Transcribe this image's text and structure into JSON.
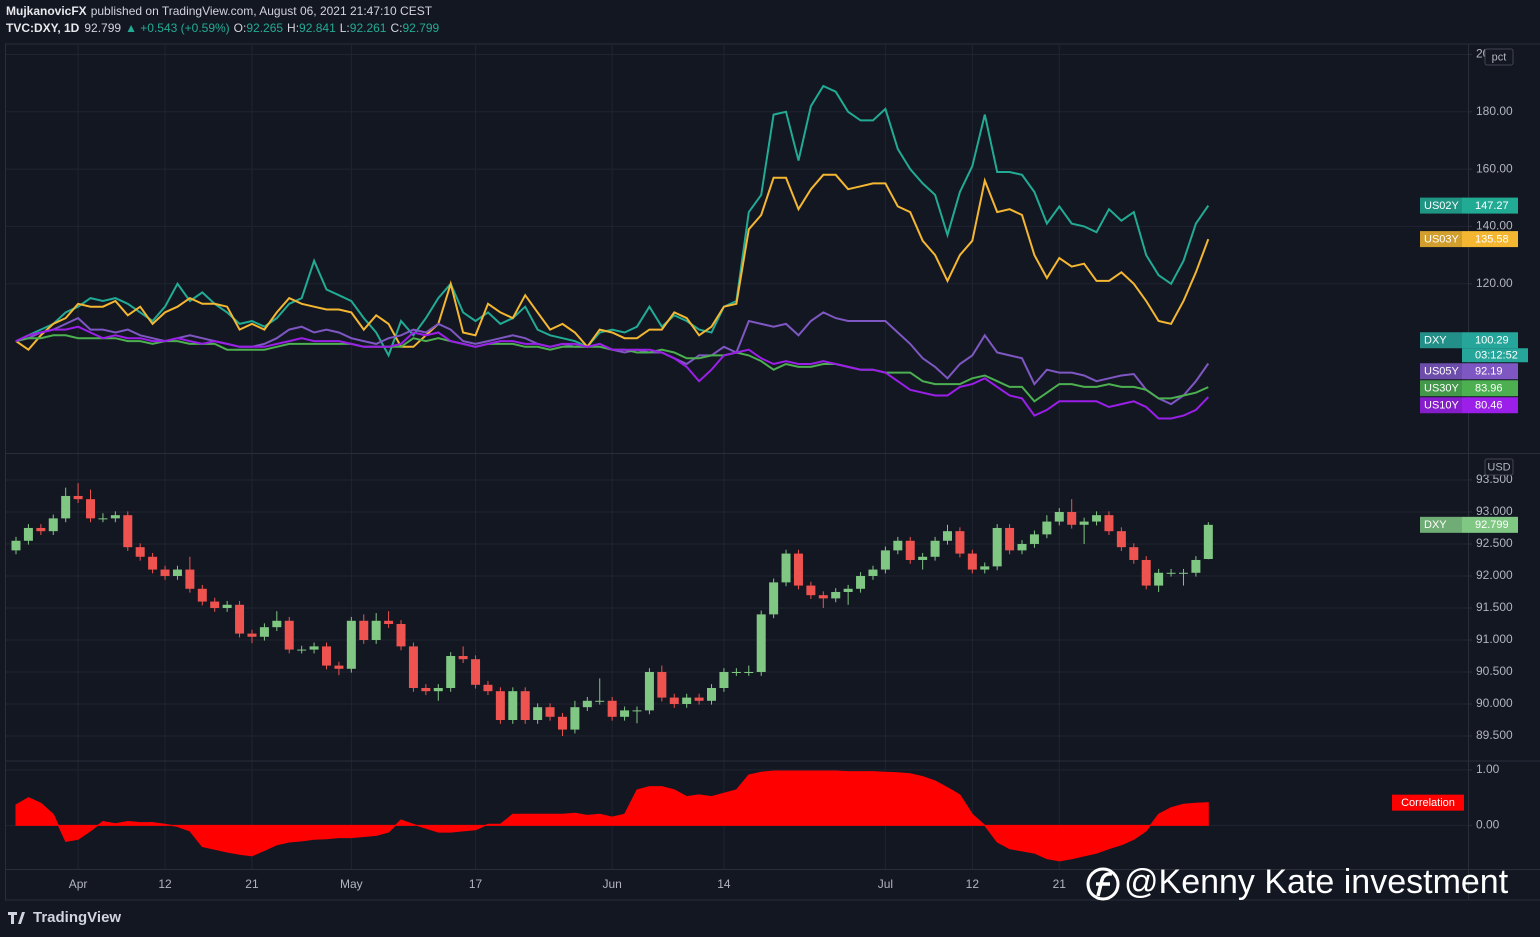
{
  "header": {
    "author": "MujkanovicFX",
    "published": "published on TradingView.com, August 06, 2021 21:47:10 CEST",
    "symbol": "TVC:DXY, 1D",
    "change": "▲ +0.543 (+0.59%)",
    "ohlc_labels": [
      "O:",
      "H:",
      "L:",
      "C:"
    ]
  },
  "chart_data": [
    {
      "type": "line",
      "unit": "pct",
      "ylim": [
        61.3,
        203.3
      ],
      "yticks": [
        {
          "value": 120,
          "label": "120.00"
        },
        {
          "value": 140,
          "label": "140.00"
        },
        {
          "value": 160,
          "label": "160.00"
        },
        {
          "value": 180,
          "label": "180.00"
        },
        {
          "value": 200,
          "label": "200.00"
        }
      ],
      "reference": {
        "name": "DXY",
        "value": 100.29,
        "countdown": "03:12:52",
        "color": "#26a69a"
      },
      "series": [
        {
          "name": "US02Y",
          "color": "#22ab94",
          "values": [
            100,
            102,
            104,
            106,
            110,
            112,
            115,
            114,
            115,
            113,
            110,
            107,
            112,
            120,
            114,
            117,
            113,
            110,
            106,
            107,
            105,
            108,
            113,
            115,
            128,
            118,
            116,
            114,
            108,
            103,
            95,
            107,
            102,
            108,
            115,
            120,
            110,
            107,
            110,
            106,
            108,
            112,
            104,
            102,
            101,
            100,
            98,
            103,
            104,
            103,
            105,
            112,
            105,
            109,
            107,
            104,
            103,
            112,
            114,
            145,
            151,
            179,
            180,
            163,
            182,
            189,
            187,
            180,
            177,
            177,
            181,
            167,
            160,
            155,
            151,
            137,
            152,
            161,
            179,
            159,
            159,
            158,
            152,
            141,
            147,
            141,
            140,
            138,
            146,
            142,
            145,
            130,
            123,
            120,
            128,
            141,
            147.27
          ]
        },
        {
          "name": "US03Y",
          "color": "#f5b731",
          "values": [
            100,
            97,
            102,
            106,
            108,
            113,
            112,
            112,
            114,
            109,
            112,
            106,
            110,
            112,
            115,
            113,
            113,
            112,
            104,
            106,
            104,
            110,
            115,
            113,
            112,
            111,
            111,
            110,
            104,
            109,
            106,
            98,
            98,
            102,
            106,
            120,
            103,
            102,
            113,
            110,
            108,
            116,
            110,
            104,
            106,
            103,
            98,
            104,
            103,
            101,
            101,
            104,
            104,
            110,
            108,
            102,
            105,
            112,
            113,
            139,
            144,
            157,
            157,
            146,
            153,
            158,
            158,
            153,
            154,
            155,
            155,
            147,
            145,
            135,
            130,
            121,
            130,
            135,
            156,
            145,
            146,
            144,
            130,
            122,
            129,
            126,
            127,
            121,
            121,
            124,
            120,
            114,
            107,
            106,
            114,
            124,
            135.58
          ]
        },
        {
          "name": "US05Y",
          "color": "#7e57c2",
          "values": [
            100,
            101,
            103,
            104,
            106,
            108,
            104,
            104,
            103,
            104,
            102,
            101,
            100,
            101,
            102,
            101,
            100,
            99,
            98,
            98,
            99,
            101,
            104,
            105,
            103,
            104,
            103,
            101,
            100,
            99,
            101,
            102,
            104,
            103,
            106,
            104,
            100,
            99,
            100,
            101,
            102,
            101,
            99,
            98,
            99,
            98,
            98,
            99,
            97,
            96,
            97,
            96,
            96,
            94,
            92,
            95,
            95,
            98,
            96,
            107,
            106,
            105,
            106,
            102,
            107,
            110,
            108,
            107,
            107,
            107,
            107,
            103,
            99,
            94,
            91,
            87,
            92,
            95,
            102,
            96,
            95,
            94,
            85,
            90,
            89,
            89,
            88,
            86,
            87,
            88,
            88.5,
            83,
            80,
            78,
            81,
            86,
            92.19
          ]
        },
        {
          "name": "US30Y",
          "color": "#4caf50",
          "values": [
            100,
            101,
            101,
            102,
            102,
            101,
            101,
            101,
            101,
            100,
            100,
            99,
            100,
            100,
            99,
            99,
            99,
            97,
            97,
            97,
            97,
            98,
            99,
            99,
            99,
            99,
            99,
            99,
            98,
            98,
            98,
            98,
            101,
            100,
            101,
            100,
            99,
            98,
            99,
            99,
            99,
            98,
            98,
            97,
            98,
            98,
            98,
            98,
            97,
            97,
            96,
            96,
            97,
            96,
            94,
            94,
            95,
            95,
            96,
            95,
            93,
            90,
            92,
            91,
            91,
            92,
            92,
            91,
            90,
            90,
            89,
            89,
            89,
            86,
            85,
            85,
            85,
            87,
            88,
            86,
            84,
            84,
            79,
            82,
            85,
            85,
            84,
            84,
            85,
            84,
            84,
            83,
            80,
            80,
            81,
            82,
            83.96
          ]
        },
        {
          "name": "US10Y",
          "color": "#9b1fe8",
          "values": [
            100,
            102,
            103,
            104,
            104,
            105,
            103,
            101,
            102,
            101,
            101,
            100,
            100,
            101,
            100,
            99,
            100,
            99,
            98,
            98,
            98,
            99,
            100,
            101,
            100,
            100,
            100,
            99,
            98,
            98,
            98,
            99,
            103,
            102,
            103,
            100,
            99,
            98,
            99,
            100,
            100,
            99,
            99,
            98,
            99,
            99,
            98,
            99,
            97,
            97,
            97,
            97,
            96,
            94,
            91,
            86,
            90,
            95,
            96,
            97,
            94,
            92,
            93,
            92,
            92,
            93,
            92,
            91,
            90,
            90,
            89,
            86,
            83,
            82,
            81,
            81,
            84,
            85,
            87,
            84,
            81,
            80,
            74,
            76,
            79,
            79,
            79,
            79,
            77,
            78,
            79,
            77,
            73,
            73,
            74,
            76,
            80.46
          ]
        }
      ]
    },
    {
      "type": "candlestick",
      "name": "DXY",
      "unit": "USD",
      "up_color": "#81c784",
      "down_color": "#ef5350",
      "badge_color": "#81c784",
      "ylim": [
        89.125,
        93.89
      ],
      "yticks": [
        {
          "value": 89.5,
          "label": "89.500"
        },
        {
          "value": 90,
          "label": "90.000"
        },
        {
          "value": 90.5,
          "label": "90.500"
        },
        {
          "value": 91,
          "label": "91.000"
        },
        {
          "value": 91.5,
          "label": "91.500"
        },
        {
          "value": 92,
          "label": "92.000"
        },
        {
          "value": 92.5,
          "label": "92.500"
        },
        {
          "value": 93,
          "label": "93.000"
        },
        {
          "value": 93.5,
          "label": "93.500"
        }
      ],
      "open": [
        92.4,
        92.55,
        92.75,
        92.7,
        92.9,
        93.25,
        93.2,
        92.9,
        92.9,
        92.95,
        92.45,
        92.3,
        92.1,
        92.0,
        92.1,
        91.8,
        91.6,
        91.5,
        91.55,
        91.1,
        91.05,
        91.2,
        91.3,
        90.85,
        90.85,
        90.9,
        90.6,
        90.55,
        91.3,
        91.0,
        91.3,
        91.25,
        90.9,
        90.25,
        90.2,
        90.25,
        90.75,
        90.7,
        90.3,
        90.2,
        89.75,
        90.2,
        89.75,
        89.95,
        89.8,
        89.6,
        89.95,
        90.05,
        90.05,
        89.8,
        89.9,
        89.9,
        90.5,
        90.1,
        90.0,
        90.1,
        90.05,
        90.25,
        90.5,
        90.5,
        90.5,
        91.4,
        91.9,
        92.35,
        91.85,
        91.7,
        91.65,
        91.75,
        91.8,
        92.0,
        92.1,
        92.4,
        92.55,
        92.25,
        92.3,
        92.55,
        92.7,
        92.35,
        92.1,
        92.15,
        92.75,
        92.4,
        92.5,
        92.65,
        92.85,
        93.0,
        92.8,
        92.85,
        92.95,
        92.7,
        92.45,
        92.25,
        91.85,
        92.05,
        92.05,
        92.05,
        92.265
      ],
      "high": [
        92.61,
        92.81,
        92.81,
        92.96,
        93.38,
        93.45,
        93.35,
        92.98,
        93.01,
        93.01,
        92.51,
        92.36,
        92.16,
        92.16,
        92.3,
        91.86,
        91.66,
        91.61,
        91.61,
        91.16,
        91.26,
        91.45,
        91.36,
        90.91,
        90.96,
        90.96,
        90.66,
        91.36,
        91.4,
        91.42,
        91.45,
        91.31,
        90.96,
        90.31,
        90.31,
        90.81,
        90.9,
        90.76,
        90.36,
        90.26,
        90.26,
        90.26,
        90.01,
        90.01,
        89.86,
        90.05,
        90.11,
        90.4,
        90.11,
        89.96,
        89.96,
        90.56,
        90.6,
        90.16,
        90.16,
        90.16,
        90.31,
        90.56,
        90.56,
        90.6,
        91.46,
        91.96,
        92.41,
        92.41,
        91.91,
        91.76,
        91.81,
        91.86,
        92.06,
        92.16,
        92.46,
        92.61,
        92.61,
        92.36,
        92.61,
        92.8,
        92.76,
        92.41,
        92.21,
        92.81,
        92.81,
        92.56,
        92.71,
        92.95,
        93.06,
        93.2,
        92.91,
        93.01,
        93.01,
        92.76,
        92.51,
        92.31,
        92.11,
        92.11,
        92.11,
        92.31,
        92.841
      ],
      "low": [
        92.34,
        92.49,
        92.64,
        92.64,
        92.84,
        93.14,
        92.84,
        92.84,
        92.84,
        92.39,
        92.24,
        92.04,
        91.94,
        91.94,
        91.74,
        91.54,
        91.44,
        91.44,
        91.04,
        90.95,
        90.99,
        91.14,
        90.79,
        90.79,
        90.79,
        90.54,
        90.45,
        90.49,
        90.94,
        90.94,
        91.19,
        90.84,
        90.19,
        90.14,
        90.05,
        90.19,
        90.64,
        90.24,
        90.14,
        89.69,
        89.69,
        89.69,
        89.69,
        89.74,
        89.5,
        89.54,
        89.89,
        89.99,
        89.74,
        89.74,
        89.7,
        89.84,
        90.04,
        89.94,
        89.94,
        89.99,
        89.99,
        90.19,
        90.44,
        90.44,
        90.44,
        91.34,
        91.84,
        91.79,
        91.64,
        91.5,
        91.59,
        91.55,
        91.74,
        91.94,
        92.04,
        92.34,
        92.19,
        92.1,
        92.24,
        92.49,
        92.29,
        92.04,
        92.04,
        92.09,
        92.34,
        92.34,
        92.44,
        92.59,
        92.79,
        92.74,
        92.5,
        92.79,
        92.64,
        92.39,
        92.19,
        91.79,
        91.75,
        91.99,
        91.85,
        91.99,
        92.261
      ],
      "close": [
        92.55,
        92.75,
        92.7,
        92.9,
        93.25,
        93.2,
        92.9,
        92.9,
        92.95,
        92.45,
        92.3,
        92.1,
        92.0,
        92.1,
        91.8,
        91.6,
        91.5,
        91.55,
        91.1,
        91.05,
        91.2,
        91.3,
        90.85,
        90.85,
        90.9,
        90.6,
        90.55,
        91.3,
        91.0,
        91.3,
        91.25,
        90.9,
        90.25,
        90.2,
        90.25,
        90.75,
        90.7,
        90.3,
        90.2,
        89.75,
        90.2,
        89.75,
        89.95,
        89.8,
        89.6,
        89.95,
        90.05,
        90.05,
        89.8,
        89.9,
        89.9,
        90.5,
        90.1,
        90.0,
        90.1,
        90.05,
        90.25,
        90.5,
        90.5,
        90.5,
        91.4,
        91.9,
        92.35,
        91.85,
        91.7,
        91.65,
        91.75,
        91.8,
        92.0,
        92.1,
        92.4,
        92.55,
        92.25,
        92.3,
        92.55,
        92.7,
        92.35,
        92.1,
        92.15,
        92.75,
        92.4,
        92.5,
        92.65,
        92.85,
        93.0,
        92.8,
        92.85,
        92.95,
        92.7,
        92.45,
        92.25,
        91.85,
        92.05,
        92.05,
        92.05,
        92.25,
        92.799
      ]
    },
    {
      "type": "area",
      "name": "Correlation",
      "color": "#ff0000",
      "ylim": [
        -0.786,
        1.143
      ],
      "yticks": [
        {
          "value": 0,
          "label": "0.00"
        },
        {
          "value": 1,
          "label": "1.00"
        }
      ],
      "categories": [
        null,
        null,
        null,
        null,
        null,
        "Apr",
        null,
        null,
        null,
        null,
        null,
        null,
        "12",
        null,
        null,
        null,
        null,
        null,
        null,
        "21",
        null,
        null,
        null,
        null,
        null,
        null,
        null,
        "May",
        null,
        null,
        null,
        null,
        null,
        null,
        null,
        null,
        null,
        "17",
        null,
        null,
        null,
        null,
        null,
        null,
        null,
        null,
        null,
        null,
        "Jun",
        null,
        null,
        null,
        null,
        null,
        null,
        null,
        null,
        "14",
        null,
        null,
        null,
        null,
        null,
        null,
        null,
        null,
        null,
        null,
        null,
        null,
        "Jul",
        null,
        null,
        null,
        null,
        null,
        null,
        "12",
        null,
        null,
        null,
        null,
        null,
        null,
        "21",
        null,
        null,
        null,
        null,
        null,
        null,
        null,
        null,
        null,
        null,
        null,
        null
      ],
      "values": [
        0.37,
        0.5,
        0.4,
        0.2,
        -0.29,
        -0.25,
        -0.1,
        0.07,
        0.03,
        0.07,
        0.05,
        0.05,
        0.02,
        -0.02,
        -0.1,
        -0.38,
        -0.43,
        -0.48,
        -0.52,
        -0.55,
        -0.45,
        -0.35,
        -0.3,
        -0.28,
        -0.25,
        -0.24,
        -0.22,
        -0.22,
        -0.2,
        -0.18,
        -0.12,
        0.1,
        0.02,
        -0.05,
        -0.12,
        -0.12,
        -0.1,
        -0.08,
        0.02,
        0.02,
        0.2,
        0.2,
        0.2,
        0.2,
        0.2,
        0.22,
        0.18,
        0.2,
        0.15,
        0.2,
        0.64,
        0.7,
        0.7,
        0.64,
        0.52,
        0.55,
        0.52,
        0.58,
        0.64,
        0.91,
        0.96,
        0.98,
        0.98,
        0.98,
        0.98,
        0.98,
        0.98,
        0.97,
        0.97,
        0.97,
        0.96,
        0.95,
        0.93,
        0.88,
        0.8,
        0.68,
        0.55,
        0.2,
        0,
        -0.3,
        -0.42,
        -0.46,
        -0.5,
        -0.6,
        -0.64,
        -0.6,
        -0.55,
        -0.5,
        -0.42,
        -0.35,
        -0.25,
        -0.1,
        0.2,
        0.32,
        0.38,
        0.4,
        0.41
      ]
    }
  ],
  "footer": {
    "logo": "TradingView",
    "watermark": "@Kenny Kate investment"
  }
}
